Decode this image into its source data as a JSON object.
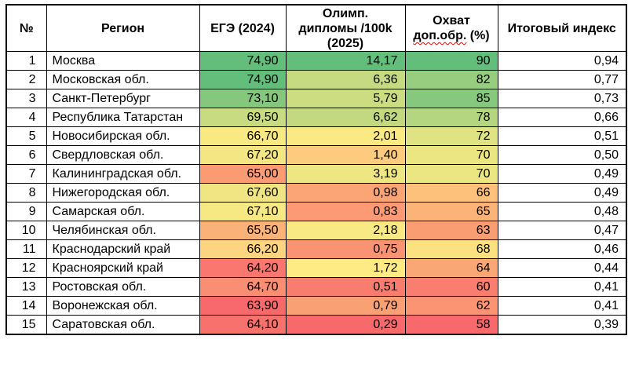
{
  "table": {
    "headers": {
      "num": "№",
      "region": "Регион",
      "ege": "ЕГЭ (2024)",
      "olymp_line1": "Олимп.",
      "olymp_line2": "дипломы /100k",
      "olymp_line3": "(2025)",
      "coverage_line1": "Охват",
      "coverage_wavy": "доп.обр.",
      "coverage_suffix": " (%)",
      "index": "Итоговый индекс"
    },
    "rows": [
      {
        "num": "1",
        "region": "Москва",
        "ege": "74,90",
        "ege_color": "#63BE7B",
        "olymp": "14,17",
        "olymp_color": "#63BE7B",
        "coverage": "90",
        "coverage_color": "#63BE7B",
        "index": "0,94"
      },
      {
        "num": "2",
        "region": "Московская обл.",
        "ege": "74,90",
        "ege_color": "#63BE7B",
        "olymp": "6,36",
        "olymp_color": "#C5DA81",
        "coverage": "82",
        "coverage_color": "#97CD7E",
        "index": "0,77"
      },
      {
        "num": "3",
        "region": "Санкт-Петербург",
        "ege": "73,10",
        "ege_color": "#84C77D",
        "olymp": "5,79",
        "olymp_color": "#CBDC81",
        "coverage": "85",
        "coverage_color": "#86C87D",
        "index": "0,73"
      },
      {
        "num": "4",
        "region": "Республика Татарстан",
        "ege": "69,50",
        "ege_color": "#C9DB81",
        "olymp": "6,62",
        "olymp_color": "#C2D980",
        "coverage": "78",
        "coverage_color": "#B5D680",
        "index": "0,66"
      },
      {
        "num": "5",
        "region": "Новосибирская обл.",
        "ege": "66,70",
        "ege_color": "#F8E983",
        "olymp": "2,01",
        "olymp_color": "#FBEA84",
        "coverage": "72",
        "coverage_color": "#DFE383",
        "index": "0,51"
      },
      {
        "num": "6",
        "region": "Свердловская обл.",
        "ege": "67,20",
        "ege_color": "#F4E783",
        "olymp": "1,40",
        "olymp_color": "#FDCB7D",
        "coverage": "70",
        "coverage_color": "#EBE682",
        "index": "0,50"
      },
      {
        "num": "7",
        "region": "Калининградская обл.",
        "ege": "65,00",
        "ege_color": "#FA9B74",
        "olymp": "3,19",
        "olymp_color": "#EDE683",
        "coverage": "70",
        "coverage_color": "#EBE682",
        "index": "0,49"
      },
      {
        "num": "8",
        "region": "Нижегородская обл.",
        "ege": "67,60",
        "ege_color": "#EFE683",
        "olymp": "0,98",
        "olymp_color": "#FBA476",
        "coverage": "66",
        "coverage_color": "#FDC17C",
        "index": "0,49"
      },
      {
        "num": "9",
        "region": "Самарская обл.",
        "ege": "67,10",
        "ege_color": "#F6E883",
        "olymp": "0,83",
        "olymp_color": "#FB9A74",
        "coverage": "65",
        "coverage_color": "#FBB378",
        "index": "0,48"
      },
      {
        "num": "10",
        "region": "Челябинская обл.",
        "ege": "65,50",
        "ege_color": "#FBB278",
        "olymp": "2,18",
        "olymp_color": "#F9E984",
        "coverage": "63",
        "coverage_color": "#F99E73",
        "index": "0,47"
      },
      {
        "num": "11",
        "region": "Краснодарский край",
        "ege": "66,20",
        "ege_color": "#FDD47F",
        "olymp": "0,75",
        "olymp_color": "#FA9373",
        "coverage": "68",
        "coverage_color": "#FCE181",
        "index": "0,46"
      },
      {
        "num": "12",
        "region": "Красноярский край",
        "ege": "64,20",
        "ege_color": "#F9776E",
        "olymp": "1,72",
        "olymp_color": "#FFEB84",
        "coverage": "64",
        "coverage_color": "#FAA776",
        "index": "0,44"
      },
      {
        "num": "13",
        "region": "Ростовская обл.",
        "ege": "64,70",
        "ege_color": "#FA8E72",
        "olymp": "0,51",
        "olymp_color": "#F97D6F",
        "coverage": "60",
        "coverage_color": "#F97E6F",
        "index": "0,41"
      },
      {
        "num": "14",
        "region": "Воронежская обл.",
        "ege": "63,90",
        "ege_color": "#F8696B",
        "olymp": "0,79",
        "olymp_color": "#FAA075",
        "coverage": "62",
        "coverage_color": "#FA9473",
        "index": "0,41"
      },
      {
        "num": "15",
        "region": "Саратовская обл.",
        "ege": "64,10",
        "ege_color": "#F8726D",
        "olymp": "0,29",
        "olymp_color": "#F8696B",
        "coverage": "58",
        "coverage_color": "#F8696B",
        "index": "0,39"
      }
    ]
  },
  "colors": {
    "scale_min_red": "#F8696B",
    "scale_mid_yellow": "#FFEB84",
    "scale_max_green": "#63BE7B",
    "border": "#000000",
    "spellcheck_underline": "#d80f0f"
  }
}
